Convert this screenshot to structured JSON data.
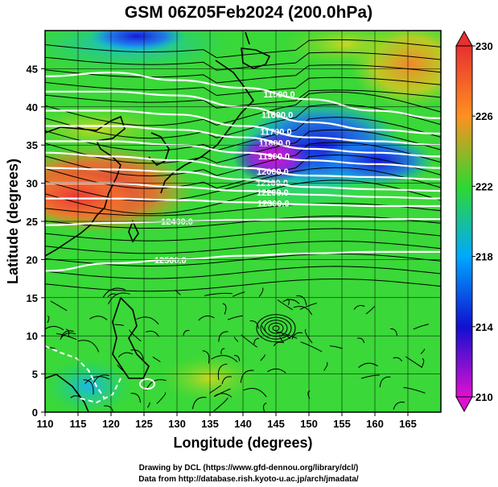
{
  "chart_data": {
    "type": "heatmap",
    "title": "GSM 06Z05Feb2024 (200.0hPa)",
    "xlabel": "Longitude (degrees)",
    "ylabel": "Latitude  (degrees)",
    "xlim": [
      110,
      170
    ],
    "ylim": [
      0,
      50
    ],
    "xticks": [
      "110",
      "115",
      "120",
      "125",
      "130",
      "135",
      "140",
      "145",
      "150",
      "155",
      "160",
      "165"
    ],
    "yticks": [
      "0",
      "5",
      "10",
      "15",
      "20",
      "25",
      "30",
      "35",
      "40",
      "45"
    ],
    "colorbar": {
      "ticks": [
        "210",
        "214",
        "218",
        "222",
        "226",
        "230"
      ],
      "range": [
        210,
        230
      ],
      "colors": [
        "#e010d0",
        "#1010d0",
        "#00a8ff",
        "#30d830",
        "#ff9020",
        "#e83030"
      ]
    },
    "contours": [
      {
        "label": "11500.0",
        "lat": [
          44,
          44.5,
          43.5,
          42.5,
          41,
          39.5,
          38.5
        ]
      },
      {
        "label": "11600.0",
        "lat": [
          42,
          42,
          41.5,
          40,
          38,
          37,
          36.5
        ]
      },
      {
        "label": "11700.0",
        "lat": [
          39.5,
          39.5,
          39,
          37.5,
          36,
          35.5,
          35
        ]
      },
      {
        "label": "11800.0",
        "lat": [
          37.5,
          37.5,
          37,
          36,
          34.5,
          34,
          33.5
        ]
      },
      {
        "label": "11900.0",
        "lat": [
          35.5,
          35.5,
          35,
          34,
          33,
          32.5,
          32
        ]
      },
      {
        "label": "12000.0",
        "lat": [
          34,
          33.5,
          33,
          32,
          31,
          30.8,
          30.5
        ]
      },
      {
        "label": "12100.0",
        "lat": [
          32,
          31.8,
          31.5,
          30.5,
          29.5,
          29.2,
          29
        ]
      },
      {
        "label": "12200.0",
        "lat": [
          30,
          30,
          29.5,
          29,
          28.5,
          28.2,
          28
        ]
      },
      {
        "label": "12300.0",
        "lat": [
          28,
          28,
          27.8,
          27.5,
          27.2,
          27,
          27
        ]
      },
      {
        "label": "12400.0",
        "lat": [
          24.5,
          24.8,
          25,
          25.2,
          25.3,
          25.3,
          25.3
        ]
      },
      {
        "label": "12500.0",
        "lat": [
          18.5,
          19.5,
          20,
          20.5,
          20.8,
          21,
          21
        ]
      }
    ],
    "contour_lon": [
      110,
      120,
      130,
      140,
      150,
      160,
      170
    ],
    "label_lon": [
      145.5,
      145.2,
      145,
      144.8,
      144.7,
      144.5,
      144.4,
      144.5,
      144.6,
      130,
      129
    ]
  },
  "credits": {
    "line1": "Drawing by DCL (https://www.gfd-dennou.org/library/dcl/)",
    "line2": "Data from http://database.rish.kyoto-u.ac.jp/arch/jmadata/"
  }
}
